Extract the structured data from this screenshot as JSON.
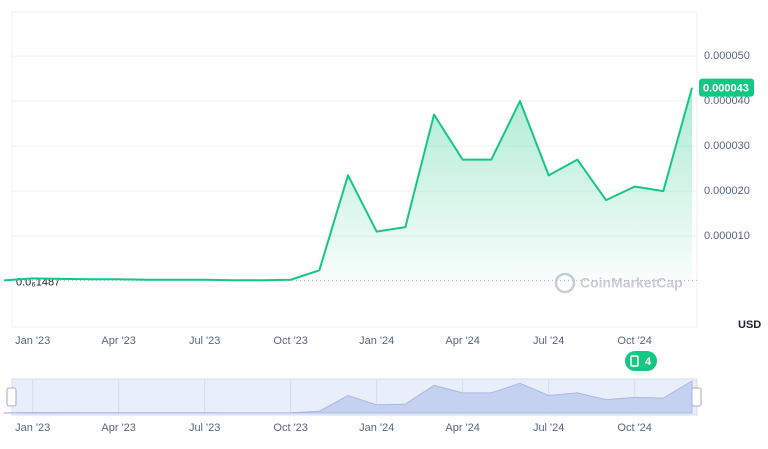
{
  "chart_data": {
    "type": "line",
    "currency": "USD",
    "watermark": "CoinMarketCap",
    "news_count": 4,
    "start_price": {
      "value": 1.487e-07,
      "label": "0.0₆1487"
    },
    "current_price": 4.3e-05,
    "xlim": [
      "2022-12",
      "2024-12"
    ],
    "xticks": [
      {
        "value": "2023-01",
        "label": "Jan '23"
      },
      {
        "value": "2023-04",
        "label": "Apr '23"
      },
      {
        "value": "2023-07",
        "label": "Jul '23"
      },
      {
        "value": "2023-10",
        "label": "Oct '23"
      },
      {
        "value": "2024-01",
        "label": "Jan '24"
      },
      {
        "value": "2024-04",
        "label": "Apr '24"
      },
      {
        "value": "2024-07",
        "label": "Jul '24"
      },
      {
        "value": "2024-10",
        "label": "Oct '24"
      }
    ],
    "ylim": [
      -1.02e-05,
      5.98e-05
    ],
    "yticks": [
      {
        "value": 1e-05,
        "label": "0.000010"
      },
      {
        "value": 2e-05,
        "label": "0.000020"
      },
      {
        "value": 3e-05,
        "label": "0.000030"
      },
      {
        "value": 4e-05,
        "label": "0.000040"
      },
      {
        "value": 5e-05,
        "label": "0.000050"
      }
    ],
    "grid": true,
    "series": [
      {
        "color": "#16c784",
        "x": [
          "2022-12",
          "2023-01",
          "2023-02",
          "2023-03",
          "2023-04",
          "2023-05",
          "2023-06",
          "2023-07",
          "2023-08",
          "2023-09",
          "2023-10",
          "2023-11",
          "2023-12",
          "2024-01",
          "2024-02",
          "2024-03",
          "2024-04",
          "2024-05",
          "2024-06",
          "2024-07",
          "2024-08",
          "2024-09",
          "2024-10",
          "2024-11",
          "2024-12"
        ],
        "values": [
          1.487e-07,
          6e-07,
          5e-07,
          4e-07,
          4e-07,
          3e-07,
          3e-07,
          3e-07,
          2e-07,
          2e-07,
          3e-07,
          2.4e-06,
          2.35e-05,
          1.1e-05,
          1.2e-05,
          3.7e-05,
          2.7e-05,
          2.7e-05,
          4e-05,
          2.35e-05,
          2.7e-05,
          1.8e-05,
          2.1e-05,
          2e-05,
          4.3e-05
        ]
      }
    ]
  }
}
